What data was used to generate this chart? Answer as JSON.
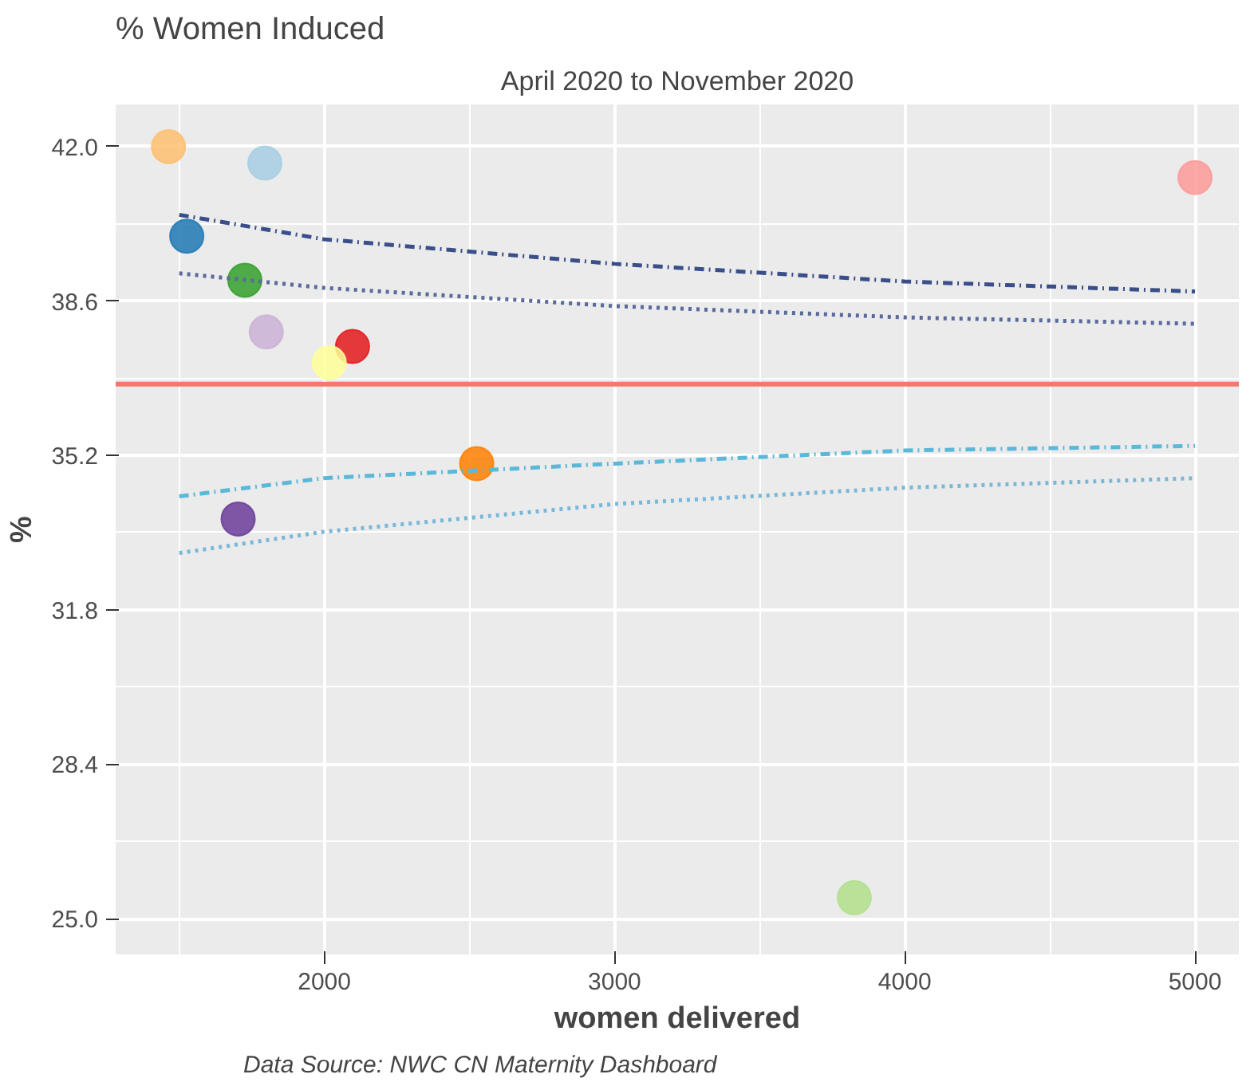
{
  "chart_data": {
    "type": "scatter",
    "title": "% Women Induced",
    "subtitle": "April 2020 to November 2020",
    "xlabel": "women delivered",
    "ylabel": "%",
    "xlim": [
      1281,
      5151
    ],
    "ylim": [
      24.21,
      42.93
    ],
    "xticks": [
      2000,
      3000,
      4000,
      5000
    ],
    "yticks": [
      {
        "value": 25.0,
        "label": "25.0"
      },
      {
        "value": 28.4,
        "label": "28.4"
      },
      {
        "value": 31.8,
        "label": "31.8"
      },
      {
        "value": 35.2,
        "label": "35.2"
      },
      {
        "value": 38.6,
        "label": "38.6"
      },
      {
        "value": 42.0,
        "label": "42.0"
      }
    ],
    "grid": true,
    "series": [
      {
        "marker": "circle",
        "x": [
          1463,
          1795,
          5000,
          1526,
          1726,
          1800,
          2097,
          2017,
          2525,
          1703,
          3826
        ],
        "values": [
          42.0,
          41.64,
          41.32,
          40.03,
          39.06,
          37.92,
          37.6,
          37.24,
          35.02,
          33.8,
          25.46
        ],
        "colors": [
          "#fdbf6f",
          "#a6cee3",
          "#fb9a99",
          "#1f78b4",
          "#33a02c",
          "#cab2d6",
          "#e31a1c",
          "#ffff99",
          "#ff7f00",
          "#6a3d9a",
          "#b2df8a"
        ]
      },
      {
        "type": "line",
        "color": "#3a4f8a",
        "line_style": "dashed",
        "x": [
          1500,
          2000,
          3000,
          4000,
          5000
        ],
        "values": [
          40.5,
          39.96,
          39.42,
          39.03,
          38.81
        ]
      },
      {
        "type": "line",
        "color": "#5a6a9a",
        "line_style": "dotted",
        "x": [
          1500,
          2000,
          3000,
          4000,
          5000
        ],
        "values": [
          39.21,
          38.89,
          38.49,
          38.24,
          38.1
        ]
      },
      {
        "type": "line",
        "color": "#5bb8d8",
        "line_style": "dashed",
        "x": [
          1500,
          2000,
          3000,
          4000,
          5000
        ],
        "values": [
          34.3,
          34.7,
          35.02,
          35.31,
          35.41
        ]
      },
      {
        "type": "line",
        "color": "#7ab8d8",
        "line_style": "dotted",
        "x": [
          1500,
          2000,
          3000,
          4000,
          5000
        ],
        "values": [
          33.05,
          33.52,
          34.13,
          34.49,
          34.7
        ]
      }
    ],
    "ref_lines": [
      {
        "axis": "y",
        "value": 36.77,
        "color": "#f8766d"
      }
    ],
    "annotations": [
      "Data Source: NWC CN Maternity Dashboard"
    ]
  }
}
